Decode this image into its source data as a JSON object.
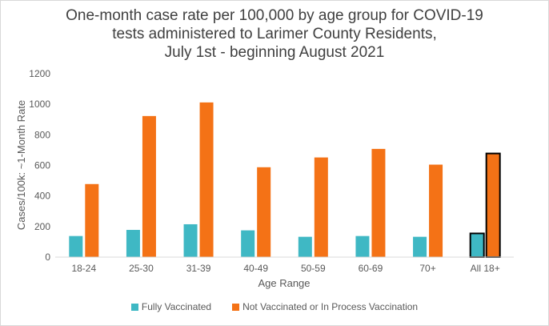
{
  "chart_data": {
    "type": "bar",
    "title_lines": [
      "One-month case rate per 100,000 by age group for COVID-19",
      "tests administered to Larimer County Residents,",
      "July 1st - beginning August 2021"
    ],
    "xlabel": "Age Range",
    "ylabel": "Cases/100k: ~1-Month Rate",
    "ylim": [
      0,
      1200
    ],
    "yticks": [
      "0",
      "200",
      "400",
      "600",
      "800",
      "1000",
      "1200"
    ],
    "grid": false,
    "legend_position": "bottom",
    "categories": [
      "18-24",
      "25-30",
      "31-39",
      "40-49",
      "50-59",
      "60-69",
      "70+",
      "All 18+"
    ],
    "highlighted_category": "All 18+",
    "series": [
      {
        "name": "Fully Vaccinated",
        "color": "#3fb8c4",
        "values": [
          138,
          178,
          215,
          175,
          133,
          138,
          133,
          155
        ]
      },
      {
        "name": "Not Vaccinated or In Process Vaccination",
        "color": "#f47216",
        "values": [
          478,
          923,
          1012,
          588,
          652,
          708,
          605,
          678
        ]
      }
    ]
  }
}
